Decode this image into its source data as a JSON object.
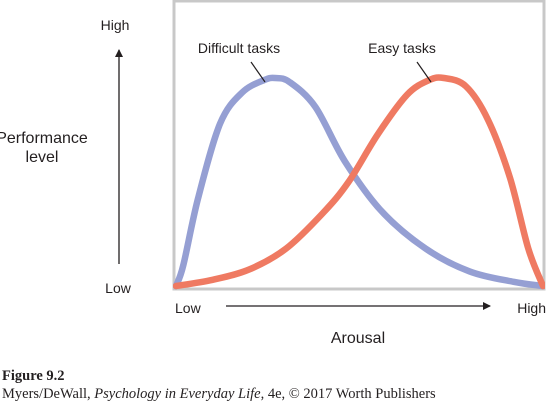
{
  "chart_data": {
    "type": "line",
    "x_label": "Arousal",
    "y_label_lines": [
      "Performance",
      "level"
    ],
    "x_ticks": {
      "low": "Low",
      "high": "High"
    },
    "y_ticks": {
      "low": "Low",
      "high": "High"
    },
    "xlim": [
      0,
      1
    ],
    "ylim": [
      0,
      1
    ],
    "grid": false,
    "series": [
      {
        "name": "Difficult tasks",
        "color": "#959fd3",
        "x": [
          0.0,
          0.02,
          0.06,
          0.12,
          0.18,
          0.24,
          0.27,
          0.31,
          0.38,
          0.46,
          0.56,
          0.68,
          0.8,
          0.92,
          1.0
        ],
        "y": [
          0.0,
          0.1,
          0.42,
          0.78,
          0.93,
          0.99,
          1.0,
          0.98,
          0.86,
          0.6,
          0.36,
          0.18,
          0.07,
          0.02,
          0.0
        ]
      },
      {
        "name": "Easy tasks",
        "color": "#ef7a62",
        "x": [
          0.0,
          0.1,
          0.2,
          0.3,
          0.4,
          0.47,
          0.55,
          0.63,
          0.69,
          0.73,
          0.79,
          0.85,
          0.91,
          0.96,
          1.0
        ],
        "y": [
          0.0,
          0.03,
          0.08,
          0.18,
          0.35,
          0.5,
          0.73,
          0.92,
          0.99,
          1.0,
          0.96,
          0.8,
          0.52,
          0.18,
          0.0
        ]
      }
    ]
  },
  "caption": {
    "title": "Figure 9.2",
    "credit_parts": [
      {
        "text": "Myers/DeWall, ",
        "italic": false
      },
      {
        "text": "Psychology in Everyday Life",
        "italic": true
      },
      {
        "text": ", 4e, © 2017 Worth Publishers",
        "italic": false
      }
    ]
  }
}
